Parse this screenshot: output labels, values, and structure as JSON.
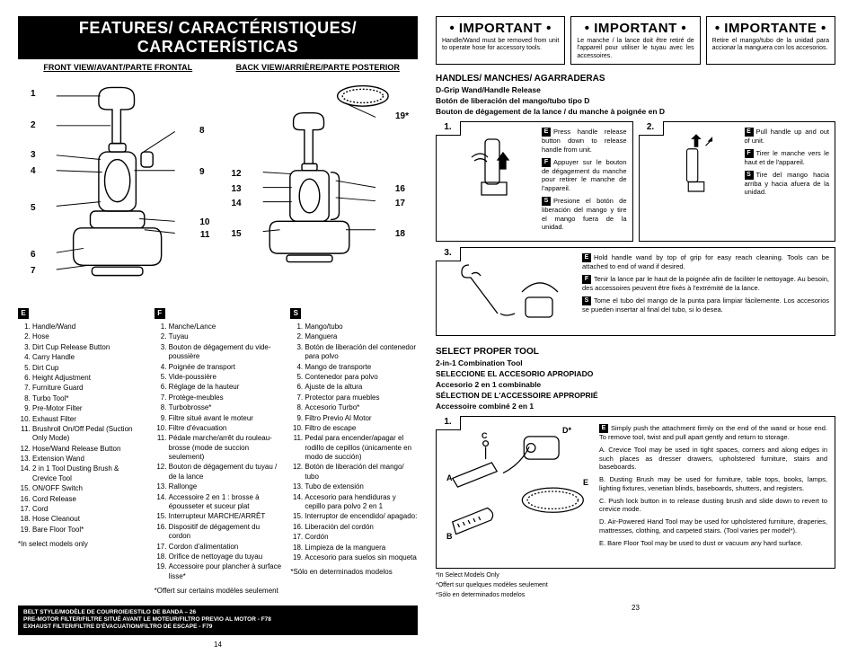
{
  "left": {
    "features_bar": "FEATURES/ CARACTÉRISTIQUES/ CARACTERÍSTICAS",
    "front_header": "FRONT VIEW/AVANT/PARTE FRONTAL",
    "back_header": "BACK VIEW/ARRIÈRE/PARTE POSTERIOR",
    "callout_19": "19*",
    "front_nums": [
      "1",
      "2",
      "3",
      "4",
      "5",
      "6",
      "7",
      "8",
      "9",
      "10",
      "11"
    ],
    "back_nums": [
      "12",
      "13",
      "14",
      "15",
      "16",
      "17",
      "18"
    ],
    "english_tag": "E",
    "french_tag": "F",
    "spanish_tag": "S",
    "english": [
      "Handle/Wand",
      "Hose",
      "Dirt Cup Release Button",
      "Carry Handle",
      "Dirt Cup",
      "Height Adjustment",
      "Furniture Guard",
      "Turbo Tool*",
      "Pre-Motor Filter",
      "Exhaust Filter",
      "Brushroll On/Off Pedal (Suction Only Mode)",
      "Hose/Wand Release Button",
      "Extension Wand",
      "2 in 1 Tool Dusting Brush & Crevice Tool",
      "ON/OFF Switch",
      "Cord Release",
      "Cord",
      "Hose Cleanout",
      "Bare Floor Tool*"
    ],
    "english_note": "*In select models only",
    "french": [
      "Manche/Lance",
      "Tuyau",
      "Bouton de dégagement du vide-poussière",
      "Poignée de transport",
      "Vide-poussière",
      "Réglage de la hauteur",
      "Protège-meubles",
      "Turbobrosse*",
      "Filtre situé avant le moteur",
      "Filtre d'évacuation",
      "Pédale marche/arrêt du rouleau-brosse (mode de succion seulement)",
      "Bouton de dégagement du tuyau / de la lance",
      "Rallonge",
      "Accessoire 2 en 1 : brosse à épousseter et suceur plat",
      "Interrupteur MARCHE/ARRÊT",
      "Dispositif de dégagement du cordon",
      "Cordon d'alimentation",
      "Orifice de nettoyage du tuyau",
      "Accessoire pour plancher à surface lisse*"
    ],
    "french_note": "*Offert sur certains modèles seulement",
    "spanish": [
      "Mango/tubo",
      "Manguera",
      "Botón de liberación del contenedor para polvo",
      "Mango de transporte",
      "Contenedor para polvo",
      "Ajuste de la altura",
      "Protector para muebles",
      "Accesorio Turbo*",
      "Filtro Previo Al Motor",
      "Filtro de escape",
      "Pedal para encender/apagar el rodillo de cepillos (únicamente en modo de succión)",
      "Botón de liberación del mango/ tubo",
      "Tubo de extensión",
      "Accesorio para hendiduras y cepillo para polvo 2 en 1",
      "Interruptor de encendido/ apagado:",
      "Liberación del cordón",
      "Cordón",
      "Limpieza de la manguera",
      "Accesorio para suelos sin moqueta"
    ],
    "spanish_note": "*Sólo en determinados modelos",
    "belt_bar": "BELT STYLE/MODÈLE DE COURROIE/ESTILO DE BANDA – 26\nPRE-MOTOR FILTER/FILTRE SITUÉ AVANT LE MOTEUR/FILTRO PREVIO AL MOTOR - F78\nEXHAUST FILTER/FILTRE D'ÉVACUATION/FILTRO DE ESCAPE - F79",
    "page": "14"
  },
  "right": {
    "imp1_title": "• IMPORTANT •",
    "imp1_text": "Handle/Wand must be removed from unit to operate hose for accessory tools.",
    "imp2_title": "• IMPORTANT •",
    "imp2_text": "Le manche / la lance doit être retiré de l'appareil pour utiliser le tuyau avec les accessoires.",
    "imp3_title": "• IMPORTANTE •",
    "imp3_text": "Retire el mango/tubo de la unidad para accionar la manguera con los accesorios.",
    "handles_title": "HANDLES/ MANCHES/ AGARRADERAS",
    "dgrip_en": "D-Grip Wand/Handle Release",
    "dgrip_es": "Botón de liberación del mango/tubo tipo D",
    "dgrip_fr": "Bouton de dégagement de la lance / du manche à poignée en D",
    "step1_num": "1.",
    "step1_e": "Press handle release button down to release handle from unit.",
    "step1_f": "Appuyer sur le bouton de dégagement du manche pour retirer le manche de l'appareil.",
    "step1_s": "Presione el botón de liberación del mango y tire el mango fuera de la unidad.",
    "step2_num": "2.",
    "step2_e": "Pull handle up and out of unit.",
    "step2_f": "Tirer le manche vers le haut et de l'appareil.",
    "step2_s": "Tire del mango hacia arriba y hacia afuera de la unidad.",
    "step3_num": "3.",
    "step3_e": "Hold handle wand by top of grip for easy reach cleaning. Tools can be attached to end of wand if desired.",
    "step3_f": "Tenir la lance par le haut de la poignée afin de faciliter le nettoyage. Au besoin, des accessoires peuvent être fixés à l'extrémité de la lance.",
    "step3_s": "Tome el tubo del mango de la punta para limpiar fácilemente. Los accesorios se pueden insertar al final del tubo, si lo desea.",
    "tool_title_en": "SELECT PROPER TOOL",
    "tool_title_en2": "2-in-1 Combination Tool",
    "tool_title_es": "SELECCIONE EL ACCESORIO APROPIADO",
    "tool_title_es2": "Accesorio 2 en 1 combinable",
    "tool_title_fr": "SÉLECTION DE L'ACCESSOIRE APPROPRIÉ",
    "tool_title_fr2": "Accessoire combiné 2 en 1",
    "tool_step_num": "1.",
    "tool_labels": {
      "A": "A",
      "B": "B",
      "C": "C",
      "D": "D*",
      "E": "E"
    },
    "tool_e": "Simply push the attachment firmly on the end of the wand or hose end. To remove tool, twist and pull apart gently and return to storage.",
    "tool_a": "A. Crevice Tool may be used in tight spaces, corners and along edges in such places as dresser drawers, upholstered furniture, stairs and baseboards.",
    "tool_b": "B. Dusting Brush may be used for furniture, table tops, books, lamps, lighting fixtures, venetian blinds, baseboards, shutters, and registers.",
    "tool_c": "C. Push lock button in to release dusting brush and slide down to revert to crevice mode.",
    "tool_d": "D. Air-Powered Hand Tool may be used for upholstered furniture, draperies, mattresses, clothing, and carpeted stairs. (Tool varies per model*).",
    "tool_e2": "E. Bare Floor Tool may be used to dust or vacuum any hard surface.",
    "select_note_en": "*In Select Models Only",
    "select_note_fr": "*Offert sur quelques modèles seulement",
    "select_note_es": "*Sólo en determinados modelos",
    "page": "23"
  }
}
